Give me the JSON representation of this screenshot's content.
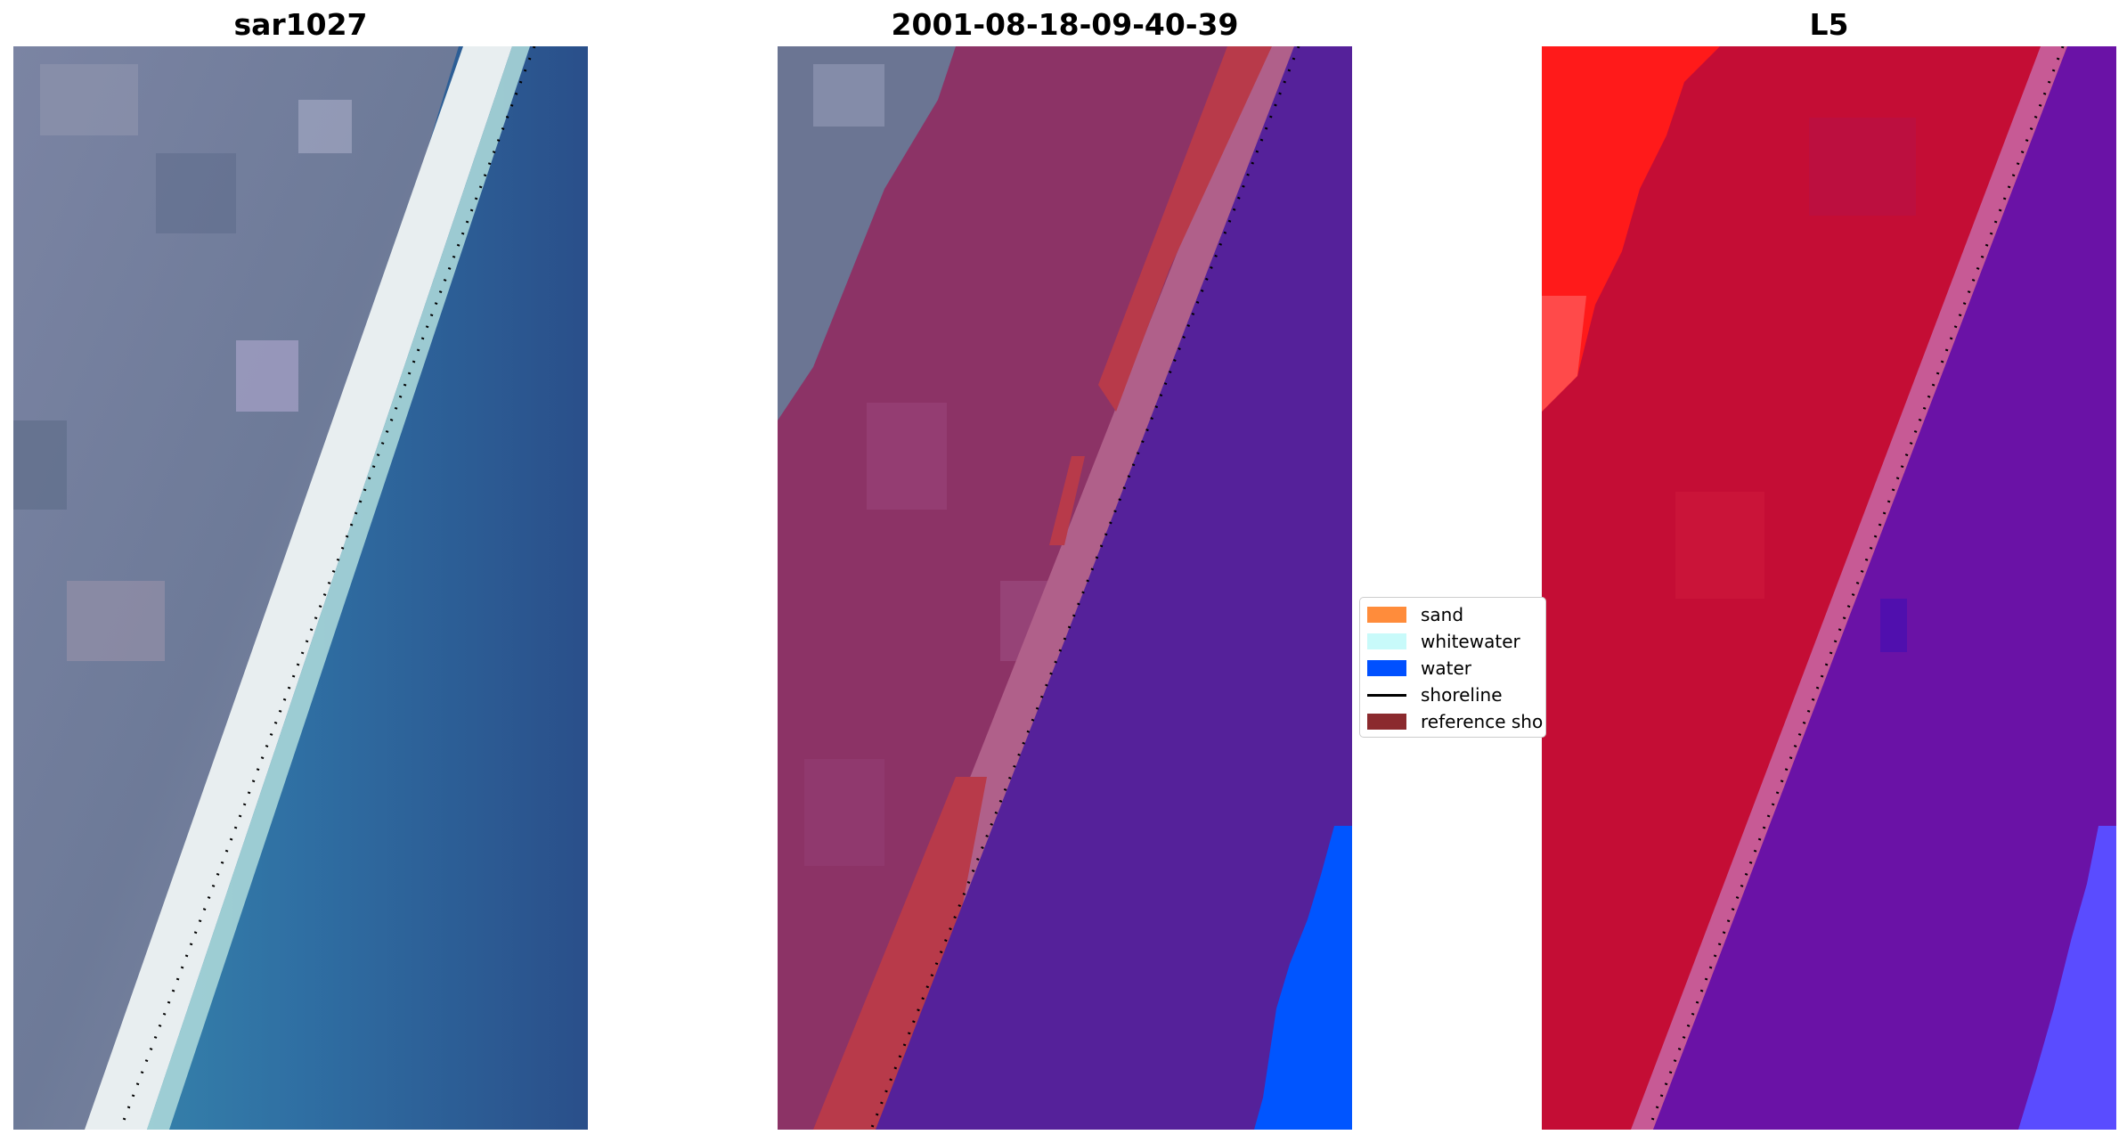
{
  "panels": [
    {
      "title": "sar1027"
    },
    {
      "title": "2001-08-18-09-40-39"
    },
    {
      "title": "L5"
    }
  ],
  "legend": {
    "items": [
      {
        "label": "sand",
        "color": "#ff8c3b",
        "kind": "patch"
      },
      {
        "label": "whitewater",
        "color": "#c8fafa",
        "kind": "patch"
      },
      {
        "label": "water",
        "color": "#0050ff",
        "kind": "patch"
      },
      {
        "label": "shoreline",
        "color": "#000000",
        "kind": "line"
      },
      {
        "label": "reference sho",
        "color": "#8b2a2e",
        "kind": "patch"
      }
    ]
  },
  "colors": {
    "sand_class": "#8c3366",
    "shore_class": "#b83a4a",
    "water_class": "#55219a",
    "water_blue": "#0055ff",
    "l5_land": "#c40d35",
    "l5_bright": "#ff1a1a",
    "l5_water": "#6e10a8",
    "l5_water_blue": "#5a4cff"
  }
}
